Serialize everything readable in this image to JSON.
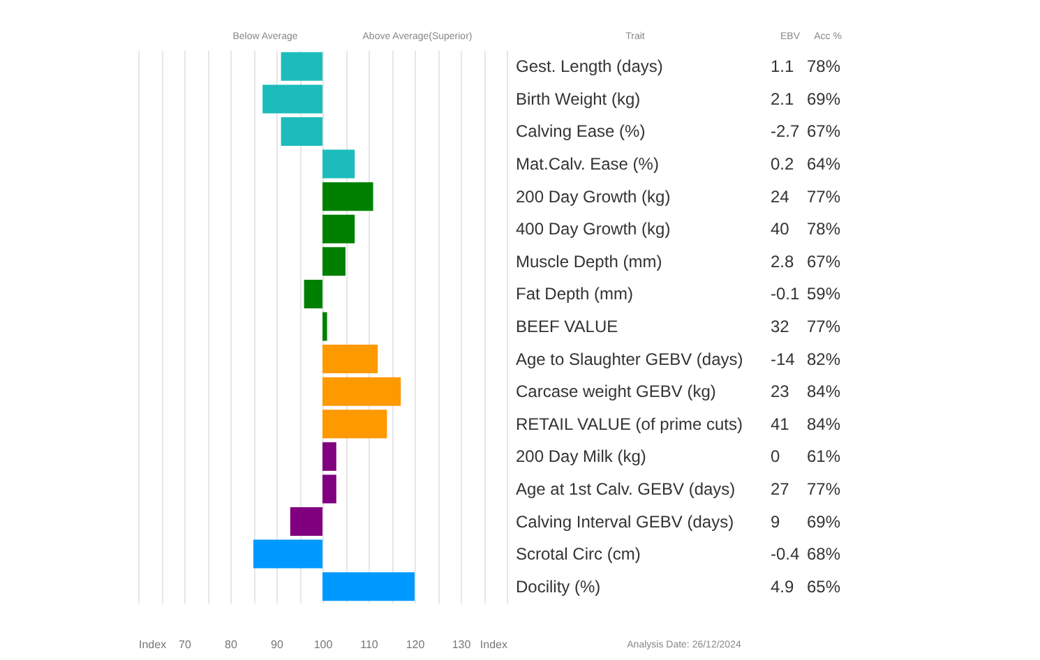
{
  "chart_data": {
    "type": "bar",
    "orientation": "horizontal",
    "categories": [
      "Gest. Length (days)",
      "Birth Weight (kg)",
      "Calving Ease (%)",
      "Mat.Calv. Ease (%)",
      "200 Day Growth (kg)",
      "400 Day Growth (kg)",
      "Muscle Depth (mm)",
      "Fat Depth (mm)",
      "BEEF VALUE",
      "Age to Slaughter GEBV (days)",
      "Carcase weight GEBV (kg)",
      "RETAIL VALUE (of prime cuts)",
      "200 Day Milk (kg)",
      "Age at 1st Calv. GEBV (days)",
      "Calving Interval GEBV (days)",
      "Scrotal Circ (cm)",
      "Docility (%)"
    ],
    "base": [
      100,
      100,
      100,
      100,
      100,
      100,
      100,
      100,
      100,
      100,
      100,
      100,
      100,
      100,
      100,
      100,
      100
    ],
    "values": [
      -9,
      -13,
      -9,
      7,
      11,
      7,
      5,
      -4,
      1,
      12,
      17,
      14,
      3,
      3,
      -7,
      -15,
      20
    ],
    "colors": [
      "#1dbcbc",
      "#1dbcbc",
      "#1dbcbc",
      "#1dbcbc",
      "#008000",
      "#008000",
      "#008000",
      "#008000",
      "#008000",
      "#ff9900",
      "#ff9900",
      "#ff9900",
      "#800080",
      "#800080",
      "#800080",
      "#0099ff",
      "#0099ff"
    ],
    "xlim": [
      60,
      140
    ],
    "xticks": [
      {
        "value": 60,
        "label": "Index"
      },
      {
        "value": 65,
        "label": null
      },
      70,
      {
        "value": 75,
        "label": null
      },
      80,
      {
        "value": 85,
        "label": null
      },
      90,
      {
        "value": 95,
        "label": null
      },
      100,
      {
        "value": 105,
        "label": null
      },
      110,
      {
        "value": 115,
        "label": null
      },
      120,
      {
        "value": 125,
        "label": null
      },
      130,
      {
        "value": 135,
        "label": null
      },
      {
        "value": 140,
        "label": "Index"
      }
    ],
    "grid": "x",
    "annotations": [
      "Below Average",
      "Above Average(Superior)",
      "Trait",
      "EBV",
      "Acc %",
      "1.1",
      "2.1",
      "-2.7",
      "0.2",
      "24",
      "40",
      "2.8",
      "-0.1",
      "32",
      "-14",
      "23",
      "41",
      "0",
      "27",
      "9",
      "-0.4",
      "4.9",
      "78%",
      "69%",
      "67%",
      "64%",
      "77%",
      "78%",
      "67%",
      "59%",
      "77%",
      "82%",
      "84%",
      "84%",
      "61%",
      "77%",
      "69%",
      "68%",
      "65%",
      "Analysis Date: 26/12/2024"
    ]
  }
}
